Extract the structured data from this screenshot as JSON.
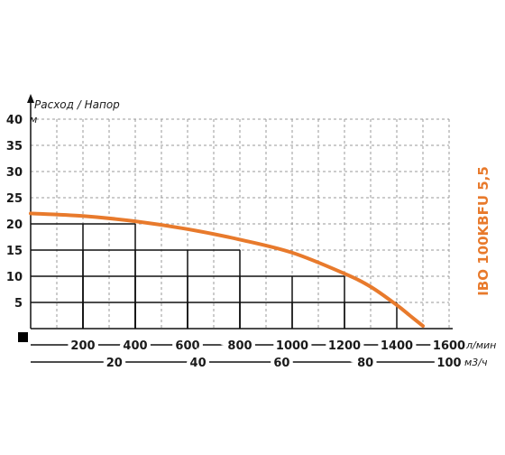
{
  "chart_data": {
    "type": "line",
    "title": "Расход / Напор",
    "model_label": "IBO 100KBFU 5,5",
    "y_unit": "м",
    "x_unit_primary": "л/мин",
    "x_unit_secondary": "м3/ч",
    "x_ticks": [
      "200",
      "400",
      "600",
      "800",
      "1000",
      "1200",
      "1400",
      "1600"
    ],
    "x2_ticks": [
      "20",
      "40",
      "60",
      "80",
      "100"
    ],
    "y_ticks": [
      "5",
      "10",
      "15",
      "20",
      "25",
      "30",
      "35",
      "40"
    ],
    "xlim": [
      0,
      1600
    ],
    "ylim": [
      0,
      40
    ],
    "x2lim": [
      0,
      100
    ],
    "grid": true,
    "curve_color": "#e87a2c",
    "series": [
      {
        "x": [
          0,
          200,
          400,
          600,
          800,
          1000,
          1200,
          1300,
          1400,
          1450,
          1500
        ],
        "y": [
          22,
          21.5,
          20.5,
          19,
          17,
          14.5,
          10.5,
          8,
          4.5,
          2.5,
          0.5
        ]
      }
    ],
    "highlight_points": [
      {
        "x": 400,
        "y": 20
      },
      {
        "x": 800,
        "y": 15
      },
      {
        "x": 1200,
        "y": 10
      },
      {
        "x": 1400,
        "y": 5
      }
    ]
  }
}
